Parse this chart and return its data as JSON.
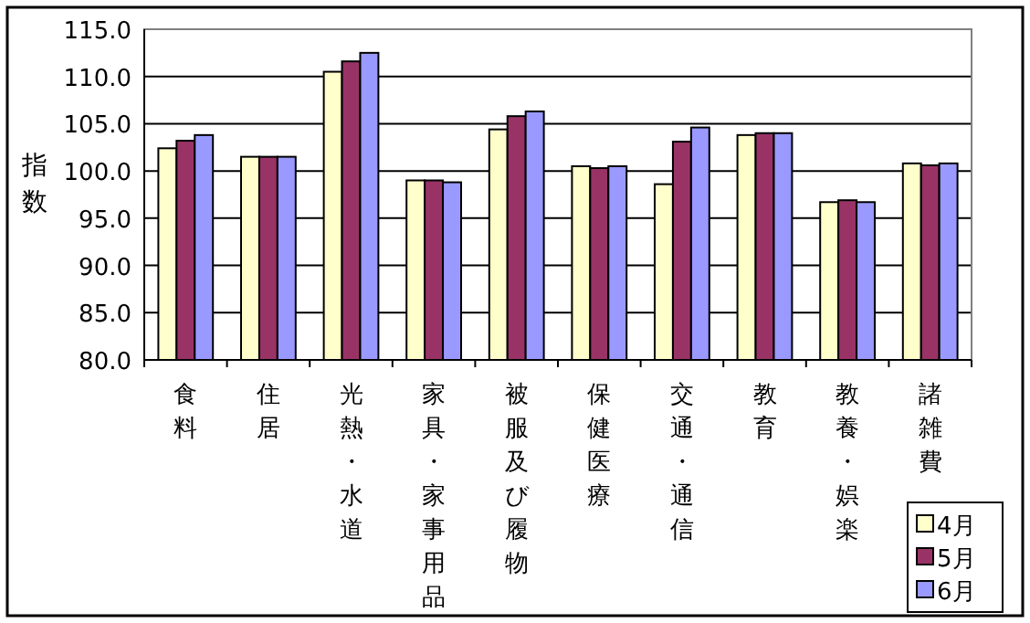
{
  "chart_data": {
    "type": "bar",
    "ylabel": "指数",
    "categories": [
      "食料",
      "住居",
      "光熱・水道",
      "家具・家事用品",
      "被服及び履物",
      "保健医療",
      "交通・通信",
      "教育",
      "教養・娯楽",
      "諸雑費"
    ],
    "series": [
      {
        "name": "4月",
        "color": "#ffffcc",
        "values": [
          102.4,
          101.5,
          110.5,
          99.0,
          104.4,
          100.5,
          98.6,
          103.8,
          96.7,
          100.8
        ]
      },
      {
        "name": "5月",
        "color": "#993366",
        "values": [
          103.2,
          101.5,
          111.6,
          99.0,
          105.8,
          100.3,
          103.1,
          104.0,
          96.9,
          100.6
        ]
      },
      {
        "name": "6月",
        "color": "#9999ff",
        "values": [
          103.8,
          101.5,
          112.5,
          98.8,
          106.3,
          100.5,
          104.6,
          104.0,
          96.7,
          100.8
        ]
      }
    ],
    "ylim": [
      80,
      115
    ],
    "yticks": [
      {
        "value": 80,
        "label": "80.0"
      },
      {
        "value": 85,
        "label": "85.0"
      },
      {
        "value": 90,
        "label": "90.0"
      },
      {
        "value": 95,
        "label": "95.0"
      },
      {
        "value": 100,
        "label": "100.0"
      },
      {
        "value": 105,
        "label": "105.0"
      },
      {
        "value": 110,
        "label": "110.0"
      },
      {
        "value": 115,
        "label": "115.0"
      }
    ],
    "grid": "y",
    "legend": "bottom right"
  }
}
